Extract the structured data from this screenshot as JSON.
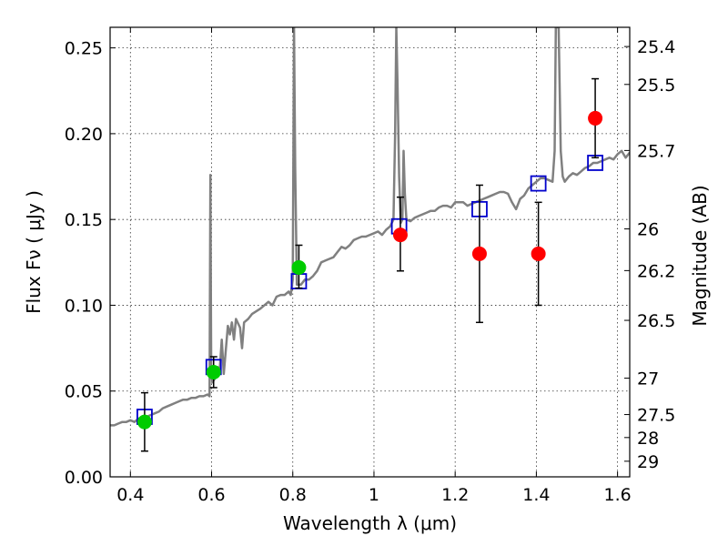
{
  "chart_data": {
    "type": "scatter",
    "xlabel": "Wavelength  λ (μm)",
    "ylabel": "Flux  F_ν  ( μJy )",
    "ylabel_right": "Magnitude (AB)",
    "xlim": [
      0.35,
      1.63
    ],
    "ylim": [
      0.0,
      0.262
    ],
    "grid": true,
    "x_ticks": [
      0.4,
      0.6,
      0.8,
      1.0,
      1.2,
      1.4,
      1.6
    ],
    "x_tick_labels": [
      "0.4",
      "0.6",
      "0.8",
      "1",
      "1.2",
      "1.4",
      "1.6"
    ],
    "y_ticks": [
      0.0,
      0.05,
      0.1,
      0.15,
      0.2,
      0.25
    ],
    "y_tick_labels": [
      "0.00",
      "0.05",
      "0.10",
      "0.15",
      "0.20",
      "0.25"
    ],
    "right_ticks": [
      {
        "flux": 0.2508,
        "label": "25.4"
      },
      {
        "flux": 0.2287,
        "label": "25.5"
      },
      {
        "flux": 0.1902,
        "label": "25.7"
      },
      {
        "flux": 0.1445,
        "label": "26"
      },
      {
        "flux": 0.1202,
        "label": "26.2"
      },
      {
        "flux": 0.0912,
        "label": "26.5"
      },
      {
        "flux": 0.0575,
        "label": "27"
      },
      {
        "flux": 0.0363,
        "label": "27.5"
      },
      {
        "flux": 0.0229,
        "label": "28"
      },
      {
        "flux": 0.0091,
        "label": "29"
      }
    ],
    "series": [
      {
        "kind": "line",
        "color": "#808080",
        "points": [
          [
            0.35,
            0.03
          ],
          [
            0.36,
            0.03
          ],
          [
            0.37,
            0.031
          ],
          [
            0.38,
            0.032
          ],
          [
            0.39,
            0.032
          ],
          [
            0.4,
            0.033
          ],
          [
            0.41,
            0.032
          ],
          [
            0.42,
            0.034
          ],
          [
            0.43,
            0.034
          ],
          [
            0.44,
            0.035
          ],
          [
            0.45,
            0.036
          ],
          [
            0.46,
            0.037
          ],
          [
            0.47,
            0.038
          ],
          [
            0.48,
            0.04
          ],
          [
            0.49,
            0.041
          ],
          [
            0.5,
            0.042
          ],
          [
            0.51,
            0.043
          ],
          [
            0.52,
            0.044
          ],
          [
            0.53,
            0.045
          ],
          [
            0.54,
            0.045
          ],
          [
            0.55,
            0.046
          ],
          [
            0.56,
            0.046
          ],
          [
            0.57,
            0.047
          ],
          [
            0.58,
            0.047
          ],
          [
            0.59,
            0.048
          ],
          [
            0.595,
            0.047
          ],
          [
            0.597,
            0.176
          ],
          [
            0.599,
            0.062
          ],
          [
            0.602,
            0.055
          ],
          [
            0.61,
            0.058
          ],
          [
            0.615,
            0.064
          ],
          [
            0.62,
            0.062
          ],
          [
            0.625,
            0.08
          ],
          [
            0.63,
            0.06
          ],
          [
            0.64,
            0.088
          ],
          [
            0.645,
            0.083
          ],
          [
            0.65,
            0.09
          ],
          [
            0.655,
            0.08
          ],
          [
            0.66,
            0.092
          ],
          [
            0.67,
            0.087
          ],
          [
            0.675,
            0.075
          ],
          [
            0.68,
            0.09
          ],
          [
            0.69,
            0.092
          ],
          [
            0.7,
            0.095
          ],
          [
            0.72,
            0.098
          ],
          [
            0.74,
            0.102
          ],
          [
            0.75,
            0.1
          ],
          [
            0.76,
            0.105
          ],
          [
            0.77,
            0.106
          ],
          [
            0.78,
            0.106
          ],
          [
            0.79,
            0.108
          ],
          [
            0.795,
            0.106
          ],
          [
            0.8,
            0.115
          ],
          [
            0.803,
            0.262
          ],
          [
            0.806,
            0.18
          ],
          [
            0.81,
            0.112
          ],
          [
            0.82,
            0.112
          ],
          [
            0.83,
            0.115
          ],
          [
            0.84,
            0.115
          ],
          [
            0.85,
            0.117
          ],
          [
            0.86,
            0.12
          ],
          [
            0.87,
            0.125
          ],
          [
            0.88,
            0.126
          ],
          [
            0.89,
            0.127
          ],
          [
            0.9,
            0.128
          ],
          [
            0.91,
            0.131
          ],
          [
            0.92,
            0.134
          ],
          [
            0.93,
            0.133
          ],
          [
            0.94,
            0.135
          ],
          [
            0.95,
            0.138
          ],
          [
            0.96,
            0.139
          ],
          [
            0.97,
            0.14
          ],
          [
            0.98,
            0.14
          ],
          [
            0.99,
            0.141
          ],
          [
            1.0,
            0.142
          ],
          [
            1.01,
            0.143
          ],
          [
            1.02,
            0.141
          ],
          [
            1.03,
            0.144
          ],
          [
            1.04,
            0.146
          ],
          [
            1.048,
            0.15
          ],
          [
            1.052,
            0.2
          ],
          [
            1.055,
            0.262
          ],
          [
            1.058,
            0.23
          ],
          [
            1.062,
            0.175
          ],
          [
            1.066,
            0.148
          ],
          [
            1.07,
            0.15
          ],
          [
            1.073,
            0.19
          ],
          [
            1.076,
            0.165
          ],
          [
            1.08,
            0.15
          ],
          [
            1.09,
            0.149
          ],
          [
            1.1,
            0.151
          ],
          [
            1.11,
            0.152
          ],
          [
            1.12,
            0.153
          ],
          [
            1.13,
            0.154
          ],
          [
            1.14,
            0.155
          ],
          [
            1.15,
            0.155
          ],
          [
            1.16,
            0.157
          ],
          [
            1.17,
            0.158
          ],
          [
            1.18,
            0.158
          ],
          [
            1.19,
            0.157
          ],
          [
            1.2,
            0.16
          ],
          [
            1.22,
            0.16
          ],
          [
            1.23,
            0.158
          ],
          [
            1.24,
            0.159
          ],
          [
            1.25,
            0.16
          ],
          [
            1.26,
            0.161
          ],
          [
            1.27,
            0.162
          ],
          [
            1.28,
            0.163
          ],
          [
            1.29,
            0.164
          ],
          [
            1.3,
            0.165
          ],
          [
            1.31,
            0.166
          ],
          [
            1.32,
            0.166
          ],
          [
            1.33,
            0.165
          ],
          [
            1.34,
            0.16
          ],
          [
            1.35,
            0.156
          ],
          [
            1.36,
            0.162
          ],
          [
            1.37,
            0.164
          ],
          [
            1.38,
            0.168
          ],
          [
            1.39,
            0.17
          ],
          [
            1.4,
            0.172
          ],
          [
            1.41,
            0.174
          ],
          [
            1.42,
            0.174
          ],
          [
            1.43,
            0.173
          ],
          [
            1.44,
            0.172
          ],
          [
            1.445,
            0.19
          ],
          [
            1.448,
            0.262
          ],
          [
            1.455,
            0.262
          ],
          [
            1.46,
            0.19
          ],
          [
            1.465,
            0.175
          ],
          [
            1.47,
            0.172
          ],
          [
            1.48,
            0.175
          ],
          [
            1.49,
            0.177
          ],
          [
            1.5,
            0.176
          ],
          [
            1.51,
            0.178
          ],
          [
            1.52,
            0.18
          ],
          [
            1.53,
            0.181
          ],
          [
            1.54,
            0.183
          ],
          [
            1.55,
            0.183
          ],
          [
            1.56,
            0.184
          ],
          [
            1.57,
            0.185
          ],
          [
            1.58,
            0.186
          ],
          [
            1.59,
            0.185
          ],
          [
            1.6,
            0.188
          ],
          [
            1.61,
            0.19
          ],
          [
            1.62,
            0.186
          ],
          [
            1.63,
            0.189
          ]
        ]
      },
      {
        "kind": "open-square",
        "color": "#0000cc",
        "points": [
          [
            0.435,
            0.035
          ],
          [
            0.605,
            0.064
          ],
          [
            0.815,
            0.114
          ],
          [
            1.062,
            0.146
          ],
          [
            1.26,
            0.156
          ],
          [
            1.405,
            0.171
          ],
          [
            1.545,
            0.183
          ]
        ]
      },
      {
        "kind": "filled-circle",
        "color": "#00cc00",
        "points": [
          {
            "x": 0.435,
            "y": 0.032,
            "lo": 0.015,
            "hi": 0.049
          },
          {
            "x": 0.605,
            "y": 0.061,
            "lo": 0.052,
            "hi": 0.07
          },
          {
            "x": 0.815,
            "y": 0.122,
            "lo": 0.11,
            "hi": 0.135
          }
        ]
      },
      {
        "kind": "filled-circle",
        "color": "#ff0000",
        "points": [
          {
            "x": 1.065,
            "y": 0.141,
            "lo": 0.12,
            "hi": 0.163
          },
          {
            "x": 1.26,
            "y": 0.13,
            "lo": 0.09,
            "hi": 0.17
          },
          {
            "x": 1.405,
            "y": 0.13,
            "lo": 0.1,
            "hi": 0.16
          },
          {
            "x": 1.545,
            "y": 0.209,
            "lo": 0.186,
            "hi": 0.232
          }
        ]
      }
    ]
  }
}
